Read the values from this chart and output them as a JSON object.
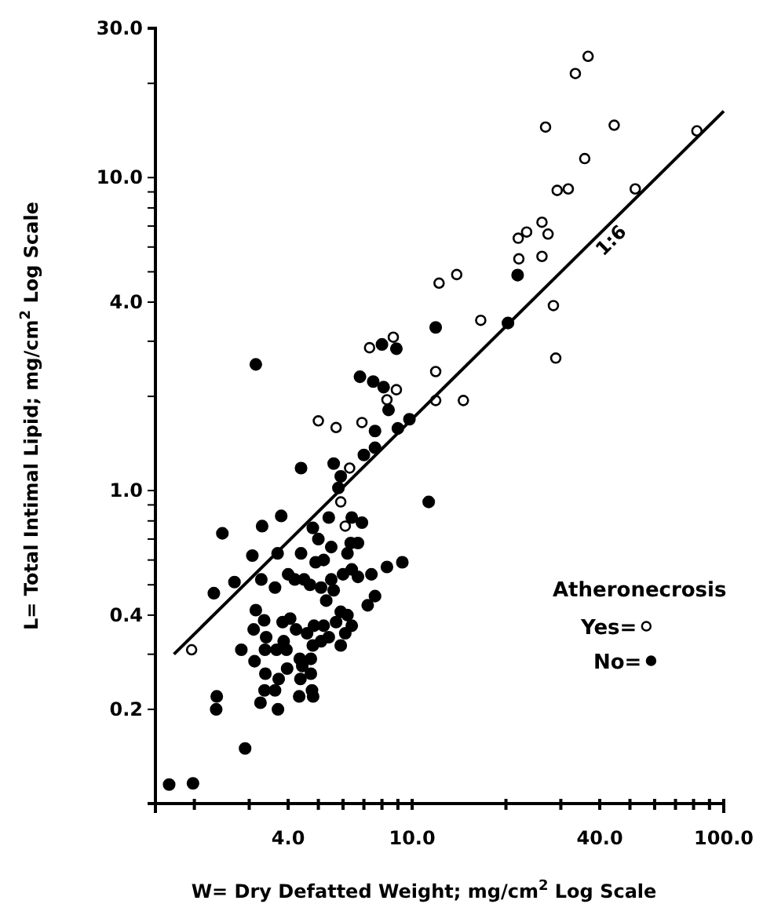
{
  "chart_data": {
    "type": "scatter",
    "xlabel": "W= Dry Defatted Weight; mg/cm$^{2}$ Log Scale",
    "ylabel": "L= Total Intimal Lipid; mg/cm$^{2}$  Log Scale",
    "legend_title": "Atheronecrosis",
    "legend": "right",
    "log": "xy",
    "xlim": [
      1.5,
      100
    ],
    "ylim": [
      0.1,
      30
    ],
    "xticks": [
      {
        "value": 2,
        "label": null
      },
      {
        "value": 3,
        "label": null
      },
      {
        "value": 4,
        "label": "4.0"
      },
      {
        "value": 5,
        "label": null
      },
      {
        "value": 6,
        "label": null
      },
      {
        "value": 7,
        "label": null
      },
      {
        "value": 8,
        "label": null
      },
      {
        "value": 9,
        "label": null
      },
      {
        "value": 10,
        "label": "10.0"
      },
      {
        "value": 20,
        "label": null
      },
      {
        "value": 30,
        "label": null
      },
      {
        "value": 40,
        "label": "40.0"
      },
      {
        "value": 50,
        "label": null
      },
      {
        "value": 60,
        "label": null
      },
      {
        "value": 70,
        "label": null
      },
      {
        "value": 80,
        "label": null
      },
      {
        "value": 90,
        "label": null
      },
      {
        "value": 100,
        "label": "100.0"
      }
    ],
    "yticks": [
      {
        "value": 0.2,
        "label": "0.2"
      },
      {
        "value": 0.3,
        "label": null
      },
      {
        "value": 0.4,
        "label": "0.4"
      },
      {
        "value": 0.5,
        "label": null
      },
      {
        "value": 0.6,
        "label": null
      },
      {
        "value": 0.7,
        "label": null
      },
      {
        "value": 0.8,
        "label": null
      },
      {
        "value": 0.9,
        "label": null
      },
      {
        "value": 1,
        "label": "1.0"
      },
      {
        "value": 2,
        "label": null
      },
      {
        "value": 3,
        "label": null
      },
      {
        "value": 4,
        "label": "4.0"
      },
      {
        "value": 5,
        "label": null
      },
      {
        "value": 6,
        "label": null
      },
      {
        "value": 7,
        "label": null
      },
      {
        "value": 8,
        "label": null
      },
      {
        "value": 9,
        "label": null
      },
      {
        "value": 10,
        "label": "10.0"
      },
      {
        "value": 20,
        "label": null
      },
      {
        "value": 30,
        "label": "30.0"
      }
    ],
    "annotations": [
      "1:6"
    ],
    "series": [
      {
        "name": "Yes=",
        "color": "#000000",
        "marker": "circle",
        "x": [
          36.7,
          33.4,
          26.8,
          44.5,
          82,
          35.8,
          29.2,
          31.7,
          52,
          26.1,
          23.3,
          21.9,
          27.3,
          26.1,
          22,
          12.2,
          13.9,
          28.4,
          16.6,
          28.9,
          11.9,
          7.3,
          8.7,
          8.9,
          8.3,
          11.9,
          14.6,
          5,
          5.7,
          6.9,
          6.3,
          5.9,
          6.1,
          1.96
        ],
        "values": [
          24.4,
          21.5,
          14.5,
          14.7,
          14.1,
          11.5,
          9.1,
          9.2,
          9.2,
          7.2,
          6.7,
          6.4,
          6.6,
          5.6,
          5.5,
          4.6,
          4.9,
          3.9,
          3.5,
          2.65,
          2.4,
          2.86,
          3.09,
          2.1,
          1.95,
          1.94,
          1.94,
          1.67,
          1.59,
          1.65,
          1.18,
          0.92,
          0.77,
          0.31
        ]
      },
      {
        "name": "No=",
        "color": "#000000",
        "marker": "circle",
        "x": [
          3.15,
          21.8,
          20.3,
          11.9,
          8,
          8.9,
          6.8,
          7.5,
          8.1,
          8.4,
          9.8,
          9,
          7.6,
          7.6,
          7,
          4.4,
          5.6,
          5.9,
          5.8,
          11.3,
          3.8,
          3.3,
          2.46,
          4.8,
          5.4,
          6.4,
          6.9,
          5,
          6.7,
          6.35,
          3.07,
          3.7,
          5.5,
          4.4,
          4.9,
          5.2,
          6.2,
          6.4,
          2.69,
          3.28,
          2.31,
          3.63,
          4,
          4.2,
          4.5,
          4.7,
          5.1,
          5.5,
          5.6,
          5.3,
          6,
          6.7,
          7.4,
          8.3,
          9.3,
          7.6,
          7.2,
          3.15,
          3.1,
          3.35,
          3.84,
          4.06,
          4.24,
          4.6,
          4.84,
          5.2,
          5.7,
          5.9,
          6.2,
          6.4,
          6.1,
          5.4,
          5.1,
          4.8,
          5.9,
          2.83,
          3.4,
          3.12,
          3.37,
          3.67,
          3.95,
          3.87,
          4.36,
          4.73,
          4.44,
          4.73,
          4.38,
          4.77,
          4.34,
          4.81,
          3.97,
          3.73,
          3.38,
          3.36,
          3.63,
          3.26,
          3.71,
          2.36,
          2.35,
          2.91,
          1.66,
          1.98
        ],
        "values": [
          2.53,
          4.88,
          3.43,
          3.32,
          2.93,
          2.84,
          2.31,
          2.23,
          2.14,
          1.81,
          1.69,
          1.58,
          1.55,
          1.37,
          1.3,
          1.18,
          1.22,
          1.11,
          1.02,
          0.92,
          0.83,
          0.77,
          0.73,
          0.76,
          0.82,
          0.82,
          0.79,
          0.7,
          0.68,
          0.68,
          0.62,
          0.63,
          0.66,
          0.63,
          0.59,
          0.6,
          0.63,
          0.56,
          0.51,
          0.52,
          0.47,
          0.49,
          0.54,
          0.52,
          0.52,
          0.5,
          0.49,
          0.52,
          0.48,
          0.445,
          0.54,
          0.53,
          0.54,
          0.57,
          0.59,
          0.46,
          0.43,
          0.415,
          0.36,
          0.385,
          0.38,
          0.39,
          0.36,
          0.35,
          0.37,
          0.37,
          0.38,
          0.41,
          0.4,
          0.37,
          0.35,
          0.34,
          0.33,
          0.32,
          0.32,
          0.31,
          0.34,
          0.285,
          0.31,
          0.31,
          0.31,
          0.33,
          0.29,
          0.29,
          0.275,
          0.26,
          0.25,
          0.23,
          0.22,
          0.22,
          0.27,
          0.25,
          0.26,
          0.23,
          0.23,
          0.21,
          0.2,
          0.22,
          0.2,
          0.15,
          0.115,
          0.116
        ]
      },
      {
        "type": "line",
        "color": "#000000",
        "marker": "none",
        "x": [
          1.72,
          100
        ],
        "values": [
          0.3,
          16.3
        ]
      }
    ]
  }
}
